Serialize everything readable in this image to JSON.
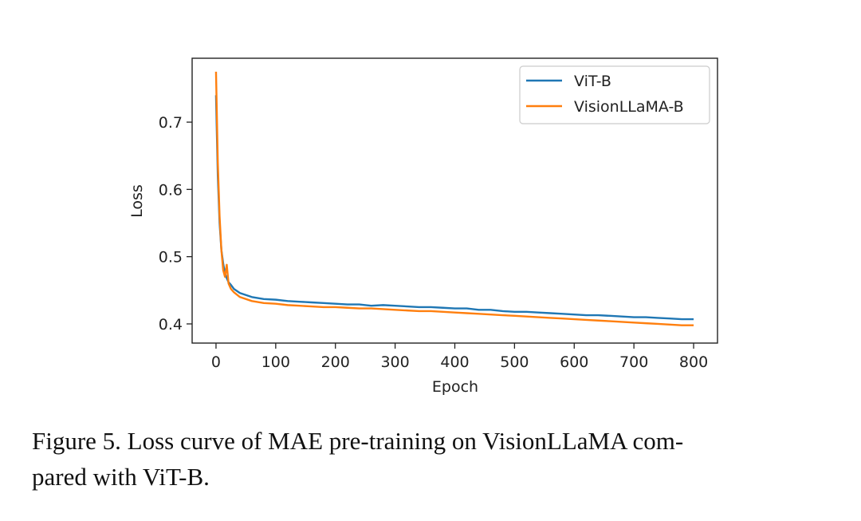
{
  "chart_data": {
    "type": "line",
    "xlabel": "Epoch",
    "ylabel": "Loss",
    "x": [
      0,
      3,
      6,
      9,
      12,
      15,
      18,
      21,
      25,
      30,
      40,
      60,
      80,
      100,
      120,
      140,
      160,
      180,
      200,
      220,
      240,
      260,
      280,
      300,
      320,
      340,
      360,
      380,
      400,
      420,
      440,
      460,
      480,
      500,
      520,
      540,
      560,
      580,
      600,
      620,
      640,
      660,
      680,
      700,
      720,
      740,
      760,
      780,
      800
    ],
    "series": [
      {
        "name": "ViT-B",
        "color": "#1f77b4",
        "values": [
          0.74,
          0.62,
          0.55,
          0.51,
          0.49,
          0.475,
          0.468,
          0.462,
          0.458,
          0.452,
          0.446,
          0.44,
          0.437,
          0.436,
          0.434,
          0.433,
          0.432,
          0.431,
          0.43,
          0.429,
          0.429,
          0.427,
          0.428,
          0.427,
          0.426,
          0.425,
          0.425,
          0.424,
          0.423,
          0.423,
          0.421,
          0.421,
          0.419,
          0.418,
          0.418,
          0.417,
          0.416,
          0.415,
          0.414,
          0.413,
          0.413,
          0.412,
          0.411,
          0.41,
          0.41,
          0.409,
          0.408,
          0.407,
          0.407
        ]
      },
      {
        "name": "VisionLLaMA-B",
        "color": "#ff7f0e",
        "values": [
          0.775,
          0.64,
          0.56,
          0.51,
          0.48,
          0.47,
          0.488,
          0.46,
          0.452,
          0.447,
          0.44,
          0.434,
          0.431,
          0.43,
          0.428,
          0.427,
          0.426,
          0.425,
          0.425,
          0.424,
          0.423,
          0.423,
          0.422,
          0.421,
          0.42,
          0.419,
          0.419,
          0.418,
          0.417,
          0.416,
          0.415,
          0.414,
          0.413,
          0.412,
          0.411,
          0.41,
          0.409,
          0.408,
          0.407,
          0.406,
          0.405,
          0.404,
          0.403,
          0.402,
          0.401,
          0.4,
          0.399,
          0.398,
          0.398
        ]
      }
    ],
    "xlim": [
      -40,
      840
    ],
    "ylim": [
      0.3715,
      0.795
    ],
    "xticks": [
      0,
      100,
      200,
      300,
      400,
      500,
      600,
      700,
      800
    ],
    "yticks": [
      0.4,
      0.5,
      0.6,
      0.7
    ],
    "legend": "upper right",
    "grid": false
  },
  "caption": {
    "lines": [
      "Figure 5. Loss curve of MAE pre-training on VisionLLaMA com-",
      "pared with ViT-B."
    ]
  }
}
